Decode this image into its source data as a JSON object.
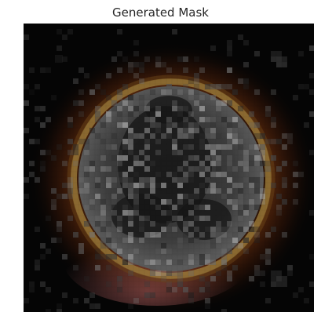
{
  "figure": {
    "title": "Generated Mask"
  },
  "image": {
    "description_name": "generated-mask-image",
    "colors": {
      "background": "#050505",
      "outer_glow": "#8a3c10",
      "ring": "#9a7a3a",
      "bottom_tint": "#a05a5a",
      "interior": "#3a3a3a",
      "speckle": "#9a9a9a"
    }
  }
}
